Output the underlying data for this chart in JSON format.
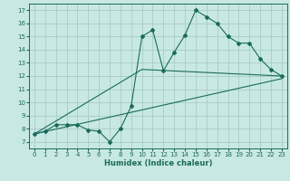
{
  "title": "",
  "xlabel": "Humidex (Indice chaleur)",
  "xlim": [
    -0.5,
    23.5
  ],
  "ylim": [
    6.5,
    17.5
  ],
  "xticks": [
    0,
    1,
    2,
    3,
    4,
    5,
    6,
    7,
    8,
    9,
    10,
    11,
    12,
    13,
    14,
    15,
    16,
    17,
    18,
    19,
    20,
    21,
    22,
    23
  ],
  "yticks": [
    7,
    8,
    9,
    10,
    11,
    12,
    13,
    14,
    15,
    16,
    17
  ],
  "background_color": "#c8e8e4",
  "grid_color": "#a8ccc8",
  "line_color": "#1a6b5a",
  "line1_x": [
    0,
    1,
    2,
    3,
    4,
    5,
    6,
    7,
    8,
    9,
    10,
    11,
    12,
    13,
    14,
    15,
    16,
    17,
    18,
    19,
    20,
    21,
    22,
    23
  ],
  "line1_y": [
    7.6,
    7.8,
    8.3,
    8.3,
    8.3,
    7.9,
    7.8,
    7.0,
    8.0,
    9.7,
    15.0,
    15.5,
    12.4,
    13.8,
    15.1,
    17.0,
    16.5,
    16.0,
    15.0,
    14.5,
    14.5,
    13.3,
    12.5,
    12.0
  ],
  "line2_x": [
    0,
    23
  ],
  "line2_y": [
    7.6,
    11.8
  ],
  "line3_x": [
    0,
    10,
    23
  ],
  "line3_y": [
    7.6,
    12.5,
    12.0
  ]
}
